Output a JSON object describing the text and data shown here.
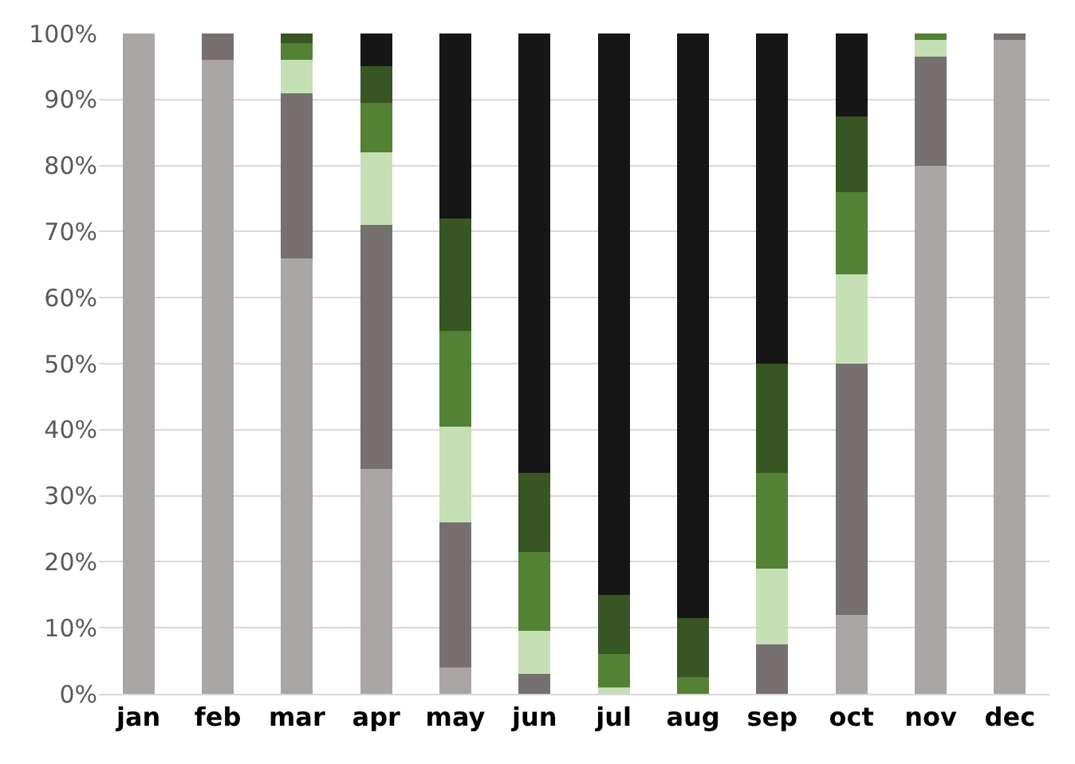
{
  "chart_data": {
    "type": "bar",
    "stacked": true,
    "categories": [
      "jan",
      "feb",
      "mar",
      "apr",
      "may",
      "jun",
      "jul",
      "aug",
      "sep",
      "oct",
      "nov",
      "dec"
    ],
    "series": [
      {
        "color": "#aba6a6",
        "values": [
          100,
          96,
          66,
          34,
          4,
          0,
          0,
          0,
          0,
          12,
          80,
          99
        ]
      },
      {
        "color": "#767070",
        "values": [
          0,
          4,
          25,
          37,
          22,
          3,
          0,
          0,
          7.5,
          38,
          16.5,
          1
        ]
      },
      {
        "color": "#c5e0b4",
        "values": [
          0,
          0,
          5,
          11,
          14.5,
          6.5,
          1,
          0,
          11.5,
          13.5,
          2.5,
          0
        ]
      },
      {
        "color": "#548235",
        "values": [
          0,
          0,
          2.5,
          7.5,
          14.5,
          12,
          5,
          2.5,
          14.5,
          12.5,
          1,
          0
        ]
      },
      {
        "color": "#375623",
        "values": [
          0,
          0,
          1.5,
          5.5,
          17,
          12,
          9,
          9,
          16.5,
          11.5,
          0,
          0
        ]
      },
      {
        "color": "#161616",
        "values": [
          0,
          0,
          0,
          5,
          28,
          66.5,
          85,
          88.5,
          50,
          12.5,
          0,
          0
        ]
      }
    ],
    "ylim": [
      0,
      100
    ],
    "yticks": [
      {
        "value": 0,
        "label": "0%"
      },
      {
        "value": 10,
        "label": "10%"
      },
      {
        "value": 20,
        "label": "20%"
      },
      {
        "value": 30,
        "label": "30%"
      },
      {
        "value": 40,
        "label": "40%"
      },
      {
        "value": 50,
        "label": "50%"
      },
      {
        "value": 60,
        "label": "60%"
      },
      {
        "value": 70,
        "label": "70%"
      },
      {
        "value": 80,
        "label": "80%"
      },
      {
        "value": 90,
        "label": "90%"
      },
      {
        "value": 100,
        "label": "100%"
      }
    ],
    "grid": "y"
  }
}
